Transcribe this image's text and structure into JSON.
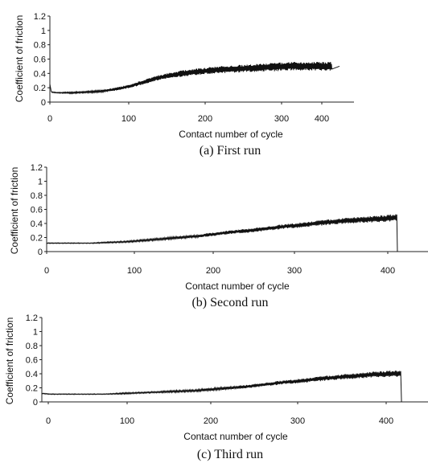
{
  "chart_data": [
    {
      "type": "line",
      "caption": "(a) First run",
      "xlabel": "Contact number of cycle",
      "ylabel": "Coefficient of friction",
      "xlim": [
        0,
        420
      ],
      "ylim": [
        0,
        1.2
      ],
      "x_ticks": [
        "0",
        "100",
        "200",
        "300",
        "400"
      ],
      "y_ticks": [
        "0",
        "0.2",
        "0.4",
        "0.6",
        "0.8",
        "1",
        "1.2"
      ],
      "x": [
        0,
        2,
        10,
        30,
        50,
        70,
        90,
        110,
        130,
        150,
        170,
        190,
        210,
        230,
        250,
        270,
        290,
        310,
        330,
        350,
        370,
        390,
        400
      ],
      "y": [
        0.25,
        0.14,
        0.13,
        0.13,
        0.14,
        0.15,
        0.18,
        0.22,
        0.28,
        0.34,
        0.38,
        0.41,
        0.43,
        0.45,
        0.46,
        0.47,
        0.48,
        0.49,
        0.5,
        0.5,
        0.5,
        0.5,
        0.5
      ],
      "fluctuation": [
        0.0,
        0.005,
        0.005,
        0.01,
        0.01,
        0.015,
        0.02,
        0.025,
        0.03,
        0.035,
        0.04,
        0.045,
        0.045,
        0.05,
        0.05,
        0.055,
        0.055,
        0.06,
        0.06,
        0.06,
        0.06,
        0.06,
        0.06
      ]
    },
    {
      "type": "line",
      "caption": "(b) Second run",
      "xlabel": "Contact number of cycle",
      "ylabel": "Coefficient of friction",
      "xlim": [
        0,
        430
      ],
      "ylim": [
        0,
        1.2
      ],
      "x_ticks": [
        "0",
        "100",
        "200",
        "300",
        "400"
      ],
      "y_ticks": [
        "0",
        "0.2",
        "0.4",
        "0.6",
        "0.8",
        "1",
        "1.2"
      ],
      "x": [
        0,
        10,
        30,
        50,
        70,
        90,
        110,
        130,
        150,
        170,
        190,
        210,
        230,
        250,
        270,
        290,
        310,
        330,
        350,
        370,
        390,
        395,
        395.5
      ],
      "y": [
        0.12,
        0.12,
        0.12,
        0.12,
        0.13,
        0.14,
        0.16,
        0.18,
        0.2,
        0.22,
        0.25,
        0.28,
        0.3,
        0.33,
        0.36,
        0.38,
        0.41,
        0.43,
        0.45,
        0.46,
        0.48,
        0.48,
        0.0
      ],
      "fluctuation": [
        0.005,
        0.005,
        0.005,
        0.005,
        0.01,
        0.01,
        0.015,
        0.015,
        0.02,
        0.02,
        0.025,
        0.025,
        0.03,
        0.03,
        0.035,
        0.035,
        0.04,
        0.04,
        0.045,
        0.045,
        0.05,
        0.05,
        0.0
      ]
    },
    {
      "type": "line",
      "caption": "(c) Third run",
      "xlabel": "Contact number of cycle",
      "ylabel": "Coefficient of friction",
      "xlim": [
        0,
        430
      ],
      "ylim": [
        0,
        1.2
      ],
      "x_ticks": [
        "0",
        "100",
        "200",
        "300",
        "400"
      ],
      "y_ticks": [
        "0",
        "0.2",
        "0.4",
        "0.6",
        "0.8",
        "1",
        "1.2"
      ],
      "x": [
        0,
        10,
        30,
        50,
        70,
        90,
        110,
        130,
        150,
        170,
        190,
        210,
        230,
        250,
        270,
        290,
        310,
        330,
        350,
        370,
        390,
        400,
        400.5
      ],
      "y": [
        0.12,
        0.11,
        0.11,
        0.11,
        0.11,
        0.12,
        0.13,
        0.14,
        0.15,
        0.16,
        0.18,
        0.2,
        0.22,
        0.25,
        0.28,
        0.3,
        0.33,
        0.35,
        0.37,
        0.39,
        0.4,
        0.4,
        0.0
      ],
      "fluctuation": [
        0.005,
        0.005,
        0.005,
        0.005,
        0.005,
        0.01,
        0.01,
        0.01,
        0.015,
        0.015,
        0.02,
        0.02,
        0.025,
        0.025,
        0.03,
        0.03,
        0.035,
        0.035,
        0.04,
        0.04,
        0.045,
        0.045,
        0.0
      ]
    }
  ]
}
